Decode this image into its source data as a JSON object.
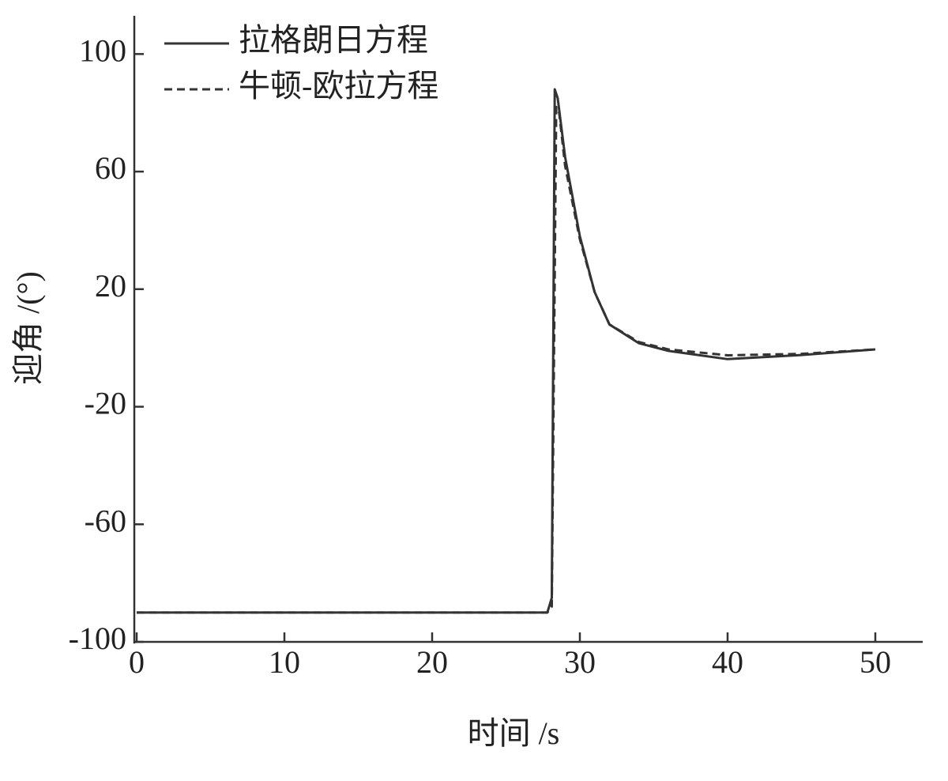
{
  "chart_data": {
    "type": "line",
    "x_label": "时间 /s",
    "y_label": "迎角 /(°)",
    "xlim": [
      0,
      53
    ],
    "ylim": [
      -100,
      113
    ],
    "xticks": [
      0,
      10,
      20,
      30,
      40,
      50
    ],
    "yticks": [
      -100,
      -60,
      -20,
      20,
      60,
      100
    ],
    "legend": "upper left",
    "series": [
      {
        "name": "拉格朗日方程",
        "color": "#333333",
        "dash": "solid",
        "x": [
          0,
          10,
          20,
          27.8,
          28.1,
          28.3,
          28.5,
          29,
          30,
          31,
          32,
          34,
          36,
          40,
          45,
          50
        ],
        "values": [
          -90,
          -90,
          -90,
          -90,
          -85,
          88,
          85,
          65,
          38,
          19,
          8,
          1.6,
          -1,
          -3.8,
          -2.4,
          -0.5
        ]
      },
      {
        "name": "牛顿-欧拉方程",
        "color": "#333333",
        "dash": "dashed",
        "x": [
          0,
          10,
          20,
          27.8,
          28.1,
          28.4,
          28.6,
          29,
          30,
          31,
          32,
          34,
          36,
          40,
          45,
          50
        ],
        "values": [
          -90,
          -90,
          -90,
          -90,
          -88,
          82,
          80,
          62,
          37,
          19,
          8,
          2,
          -0.5,
          -2.5,
          -2,
          -0.5
        ]
      }
    ]
  }
}
